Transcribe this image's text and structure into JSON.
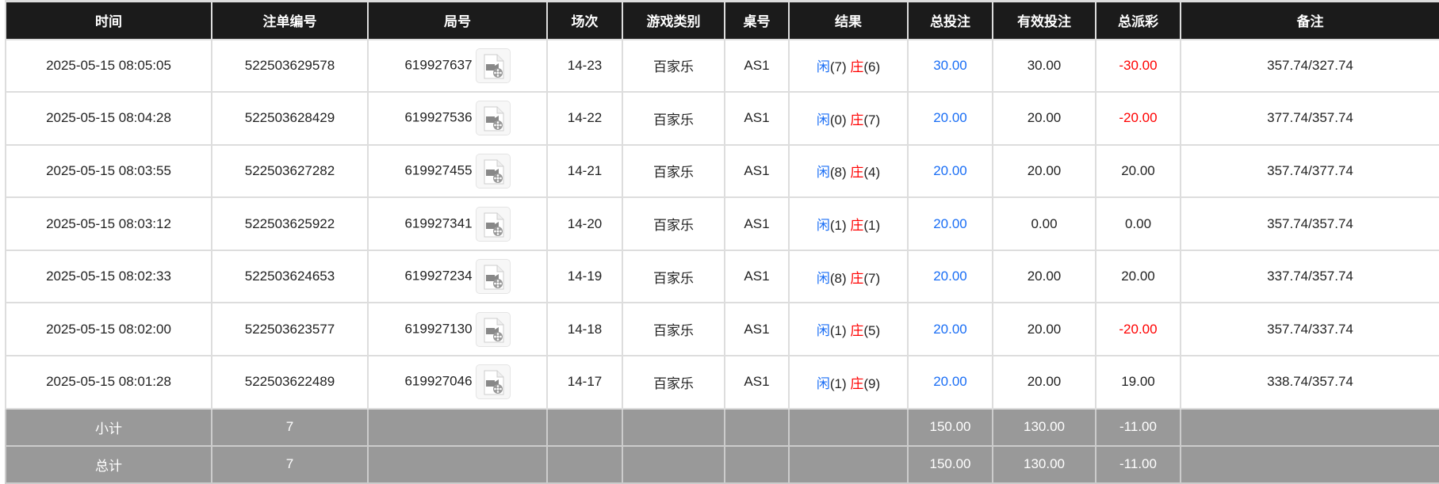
{
  "headers": [
    "时间",
    "注单编号",
    "局号",
    "场次",
    "游戏类别",
    "桌号",
    "结果",
    "总投注",
    "有效投注",
    "总派彩",
    "备注"
  ],
  "rows": [
    {
      "time": "2025-05-15 08:05:05",
      "bet_id": "522503629578",
      "round": "619927637",
      "shoe": "14-23",
      "game": "百家乐",
      "table": "AS1",
      "player_label": "闲",
      "player": "(7)",
      "banker_label": "庄",
      "banker": "(6)",
      "total_bet": "30.00",
      "valid_bet": "30.00",
      "payout": "-30.00",
      "payout_negative": true,
      "note": "357.74/327.74"
    },
    {
      "time": "2025-05-15 08:04:28",
      "bet_id": "522503628429",
      "round": "619927536",
      "shoe": "14-22",
      "game": "百家乐",
      "table": "AS1",
      "player_label": "闲",
      "player": "(0)",
      "banker_label": "庄",
      "banker": "(7)",
      "total_bet": "20.00",
      "valid_bet": "20.00",
      "payout": "-20.00",
      "payout_negative": true,
      "note": "377.74/357.74"
    },
    {
      "time": "2025-05-15 08:03:55",
      "bet_id": "522503627282",
      "round": "619927455",
      "shoe": "14-21",
      "game": "百家乐",
      "table": "AS1",
      "player_label": "闲",
      "player": "(8)",
      "banker_label": "庄",
      "banker": "(4)",
      "total_bet": "20.00",
      "valid_bet": "20.00",
      "payout": "20.00",
      "payout_negative": false,
      "note": "357.74/377.74"
    },
    {
      "time": "2025-05-15 08:03:12",
      "bet_id": "522503625922",
      "round": "619927341",
      "shoe": "14-20",
      "game": "百家乐",
      "table": "AS1",
      "player_label": "闲",
      "player": "(1)",
      "banker_label": "庄",
      "banker": "(1)",
      "total_bet": "20.00",
      "valid_bet": "0.00",
      "payout": "0.00",
      "payout_negative": false,
      "note": "357.74/357.74"
    },
    {
      "time": "2025-05-15 08:02:33",
      "bet_id": "522503624653",
      "round": "619927234",
      "shoe": "14-19",
      "game": "百家乐",
      "table": "AS1",
      "player_label": "闲",
      "player": "(8)",
      "banker_label": "庄",
      "banker": "(7)",
      "total_bet": "20.00",
      "valid_bet": "20.00",
      "payout": "20.00",
      "payout_negative": false,
      "note": "337.74/357.74"
    },
    {
      "time": "2025-05-15 08:02:00",
      "bet_id": "522503623577",
      "round": "619927130",
      "shoe": "14-18",
      "game": "百家乐",
      "table": "AS1",
      "player_label": "闲",
      "player": "(1)",
      "banker_label": "庄",
      "banker": "(5)",
      "total_bet": "20.00",
      "valid_bet": "20.00",
      "payout": "-20.00",
      "payout_negative": true,
      "note": "357.74/337.74"
    },
    {
      "time": "2025-05-15 08:01:28",
      "bet_id": "522503622489",
      "round": "619927046",
      "shoe": "14-17",
      "game": "百家乐",
      "table": "AS1",
      "player_label": "闲",
      "player": "(1)",
      "banker_label": "庄",
      "banker": "(9)",
      "total_bet": "20.00",
      "valid_bet": "20.00",
      "payout": "19.00",
      "payout_negative": false,
      "note": "338.74/357.74"
    }
  ],
  "footer": [
    {
      "label": "小计",
      "count": "7",
      "total_bet": "150.00",
      "valid_bet": "130.00",
      "payout": "-11.00"
    },
    {
      "label": "总计",
      "count": "7",
      "total_bet": "150.00",
      "valid_bet": "130.00",
      "payout": "-11.00"
    }
  ],
  "icons": {
    "replay": "video-replay-icon"
  },
  "colors": {
    "header_bg": "#1b1b1b",
    "footer_bg": "#999999",
    "blue": "#1a6ef5",
    "red": "#ff0000"
  }
}
